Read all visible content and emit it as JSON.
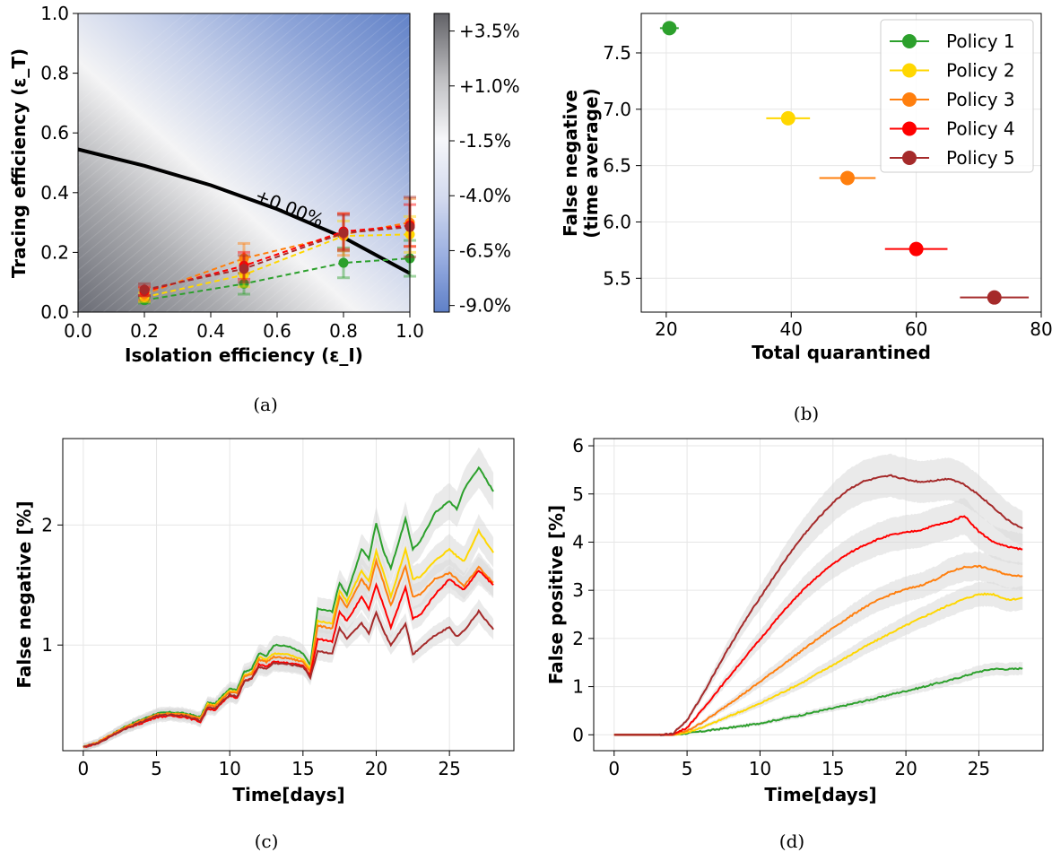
{
  "colors": {
    "policy1": "#2ca02c",
    "policy2": "#ffd700",
    "policy3": "#ff7f0e",
    "policy4": "#ff0000",
    "policy5": "#a52a2a",
    "band": "#d9d9d9",
    "grid": "#e6e6e6",
    "contour": "#000000"
  },
  "chart_data": [
    {
      "panel": "(a)",
      "type": "scatter",
      "xlabel": "Isolation efficiency (ε_I)",
      "ylabel": "Tracing efficiency (ε_T)",
      "xlim": [
        0,
        1
      ],
      "ylim": [
        0,
        1
      ],
      "xticks": [
        "0.0",
        "0.2",
        "0.4",
        "0.6",
        "0.8",
        "1.0"
      ],
      "yticks": [
        "0.0",
        "0.2",
        "0.4",
        "0.6",
        "0.8",
        "1.0"
      ],
      "grid": false,
      "background": "heatmap, gray (positive) at bottom-left to blue (negative) at top-right",
      "colorbar": {
        "ticks": [
          "+3.5%",
          "+1.0%",
          "-1.5%",
          "-4.0%",
          "-6.5%",
          "-9.0%"
        ],
        "values": [
          3.5,
          1.0,
          -1.5,
          -4.0,
          -6.5,
          -9.0
        ],
        "range": [
          -9.3,
          4.3
        ]
      },
      "contour": {
        "label": "+0.00%",
        "points": [
          [
            0.0,
            0.545
          ],
          [
            0.2,
            0.49
          ],
          [
            0.4,
            0.425
          ],
          [
            0.6,
            0.345
          ],
          [
            0.8,
            0.25
          ],
          [
            1.0,
            0.13
          ]
        ]
      },
      "x": [
        0.2,
        0.5,
        0.8,
        1.0
      ],
      "series": [
        {
          "name": "Policy 1",
          "values": [
            0.04,
            0.095,
            0.165,
            0.18
          ],
          "err": [
            0.01,
            0.035,
            0.05,
            0.06
          ]
        },
        {
          "name": "Policy 2",
          "values": [
            0.05,
            0.125,
            0.255,
            0.26
          ],
          "err": [
            0.015,
            0.04,
            0.05,
            0.06
          ]
        },
        {
          "name": "Policy 3",
          "values": [
            0.06,
            0.18,
            0.26,
            0.3
          ],
          "err": [
            0.02,
            0.05,
            0.07,
            0.08
          ]
        },
        {
          "name": "Policy 4",
          "values": [
            0.07,
            0.155,
            0.27,
            0.29
          ],
          "err": [
            0.015,
            0.045,
            0.06,
            0.07
          ]
        },
        {
          "name": "Policy 5",
          "values": [
            0.075,
            0.145,
            0.265,
            0.285
          ],
          "err": [
            0.02,
            0.045,
            0.06,
            0.1
          ]
        }
      ]
    },
    {
      "panel": "(b)",
      "type": "scatter",
      "xlabel": "Total quarantined",
      "ylabel": "False negative",
      "ylabel2": "(time average)",
      "xlim": [
        16,
        80
      ],
      "ylim": [
        5.2,
        7.85
      ],
      "xticks": [
        "20",
        "40",
        "60",
        "80"
      ],
      "yticks": [
        "5.5",
        "6.0",
        "6.5",
        "7.0",
        "7.5"
      ],
      "grid": true,
      "legend": "top-right",
      "series": [
        {
          "name": "Policy 1",
          "x": 20.5,
          "y": 7.72,
          "xerr": 1.5
        },
        {
          "name": "Policy 2",
          "x": 39.5,
          "y": 6.92,
          "xerr": 3.5
        },
        {
          "name": "Policy 3",
          "x": 49,
          "y": 6.39,
          "xerr": 4.5
        },
        {
          "name": "Policy 4",
          "x": 60,
          "y": 5.76,
          "xerr": 5
        },
        {
          "name": "Policy 5",
          "x": 72.5,
          "y": 5.33,
          "xerr": 5.5
        }
      ]
    },
    {
      "panel": "(c)",
      "type": "line",
      "xlabel": "Time[days]",
      "ylabel": "False negative [%]",
      "xlim": [
        -1.4,
        29.4
      ],
      "ylim": [
        0.12,
        2.72
      ],
      "xticks": [
        "0",
        "5",
        "10",
        "15",
        "20",
        "25"
      ],
      "yticks": [
        "1",
        "2"
      ],
      "grid": true,
      "x": [
        0,
        1,
        2,
        3,
        4,
        5,
        6,
        7,
        8,
        8.5,
        9,
        10,
        10.5,
        11,
        11.5,
        12,
        12.5,
        13,
        14,
        15,
        15.5,
        16,
        17,
        17.5,
        18,
        19,
        19.5,
        20,
        20.5,
        21,
        22,
        22.5,
        23,
        24,
        25,
        25.5,
        26,
        27,
        28
      ],
      "series": [
        {
          "name": "Policy 1",
          "values": [
            0.15,
            0.19,
            0.26,
            0.33,
            0.38,
            0.43,
            0.44,
            0.43,
            0.4,
            0.52,
            0.51,
            0.64,
            0.63,
            0.78,
            0.8,
            0.93,
            0.91,
            1.0,
            0.99,
            0.93,
            0.83,
            1.3,
            1.28,
            1.52,
            1.42,
            1.8,
            1.72,
            2.02,
            1.78,
            1.64,
            2.05,
            1.8,
            1.86,
            2.1,
            2.2,
            2.13,
            2.3,
            2.48,
            2.28
          ]
        },
        {
          "name": "Policy 2",
          "values": [
            0.15,
            0.19,
            0.26,
            0.32,
            0.37,
            0.42,
            0.43,
            0.42,
            0.39,
            0.51,
            0.5,
            0.62,
            0.61,
            0.75,
            0.77,
            0.9,
            0.88,
            0.93,
            0.92,
            0.88,
            0.8,
            1.2,
            1.18,
            1.45,
            1.36,
            1.62,
            1.53,
            1.78,
            1.6,
            1.4,
            1.8,
            1.55,
            1.57,
            1.7,
            1.8,
            1.74,
            1.7,
            1.95,
            1.77
          ]
        },
        {
          "name": "Policy 3",
          "values": [
            0.15,
            0.19,
            0.26,
            0.32,
            0.37,
            0.42,
            0.43,
            0.42,
            0.39,
            0.5,
            0.49,
            0.61,
            0.6,
            0.74,
            0.76,
            0.88,
            0.86,
            0.9,
            0.89,
            0.86,
            0.78,
            1.16,
            1.14,
            1.4,
            1.31,
            1.55,
            1.46,
            1.7,
            1.52,
            1.33,
            1.66,
            1.4,
            1.42,
            1.55,
            1.6,
            1.55,
            1.49,
            1.65,
            1.52
          ]
        },
        {
          "name": "Policy 4",
          "values": [
            0.15,
            0.18,
            0.25,
            0.31,
            0.35,
            0.4,
            0.41,
            0.4,
            0.36,
            0.47,
            0.46,
            0.58,
            0.56,
            0.7,
            0.72,
            0.84,
            0.82,
            0.86,
            0.85,
            0.83,
            0.75,
            1.05,
            1.03,
            1.28,
            1.2,
            1.4,
            1.3,
            1.5,
            1.33,
            1.15,
            1.48,
            1.22,
            1.25,
            1.42,
            1.55,
            1.5,
            1.46,
            1.62,
            1.5
          ]
        },
        {
          "name": "Policy 5",
          "values": [
            0.15,
            0.18,
            0.25,
            0.31,
            0.36,
            0.41,
            0.42,
            0.41,
            0.37,
            0.48,
            0.47,
            0.59,
            0.57,
            0.7,
            0.72,
            0.82,
            0.8,
            0.85,
            0.84,
            0.82,
            0.73,
            0.95,
            0.93,
            1.14,
            1.05,
            1.18,
            1.1,
            1.27,
            1.12,
            1.0,
            1.18,
            0.92,
            0.98,
            1.08,
            1.15,
            1.07,
            1.12,
            1.28,
            1.13
          ]
        }
      ]
    },
    {
      "panel": "(d)",
      "type": "line",
      "xlabel": "Time[days]",
      "ylabel": "False positive [%]",
      "xlim": [
        -1.4,
        29.4
      ],
      "ylim": [
        -0.33,
        6.15
      ],
      "xticks": [
        "0",
        "5",
        "10",
        "15",
        "20",
        "25"
      ],
      "yticks": [
        "0",
        "1",
        "2",
        "3",
        "4",
        "5",
        "6"
      ],
      "grid": true,
      "x": [
        0,
        3,
        4,
        5,
        6,
        7,
        8,
        9,
        10,
        11,
        12,
        13,
        14,
        15,
        16,
        17,
        18,
        19,
        20,
        21,
        22,
        23,
        24,
        25,
        26,
        27,
        28
      ],
      "series": [
        {
          "name": "Policy 1",
          "values": [
            0,
            0,
            0,
            0.03,
            0.07,
            0.11,
            0.15,
            0.19,
            0.24,
            0.3,
            0.36,
            0.42,
            0.49,
            0.55,
            0.62,
            0.69,
            0.76,
            0.84,
            0.91,
            0.98,
            1.06,
            1.13,
            1.22,
            1.31,
            1.37,
            1.36,
            1.38
          ]
        },
        {
          "name": "Policy 2",
          "values": [
            0,
            0,
            0,
            0.05,
            0.15,
            0.27,
            0.4,
            0.52,
            0.65,
            0.8,
            0.95,
            1.1,
            1.28,
            1.45,
            1.62,
            1.8,
            1.96,
            2.12,
            2.27,
            2.42,
            2.56,
            2.7,
            2.82,
            2.92,
            2.92,
            2.8,
            2.84
          ]
        },
        {
          "name": "Policy 3",
          "values": [
            0,
            0,
            0,
            0.08,
            0.25,
            0.45,
            0.67,
            0.88,
            1.1,
            1.33,
            1.55,
            1.78,
            2.0,
            2.22,
            2.42,
            2.62,
            2.78,
            2.92,
            3.02,
            3.1,
            3.22,
            3.38,
            3.48,
            3.5,
            3.42,
            3.32,
            3.3
          ]
        },
        {
          "name": "Policy 4",
          "values": [
            0,
            0,
            0,
            0.15,
            0.5,
            0.88,
            1.25,
            1.62,
            1.98,
            2.35,
            2.7,
            3.02,
            3.3,
            3.55,
            3.75,
            3.92,
            4.05,
            4.15,
            4.2,
            4.25,
            4.35,
            4.42,
            4.55,
            4.22,
            4.0,
            3.9,
            3.85
          ]
        },
        {
          "name": "Policy 5",
          "values": [
            0,
            0,
            0.02,
            0.3,
            0.8,
            1.35,
            1.88,
            2.38,
            2.85,
            3.3,
            3.75,
            4.15,
            4.5,
            4.82,
            5.08,
            5.25,
            5.33,
            5.38,
            5.3,
            5.25,
            5.28,
            5.32,
            5.2,
            4.98,
            4.72,
            4.45,
            4.28
          ]
        }
      ]
    }
  ],
  "captions": {
    "a": "(a)",
    "b": "(b)",
    "c": "(c)",
    "d": "(d)"
  }
}
